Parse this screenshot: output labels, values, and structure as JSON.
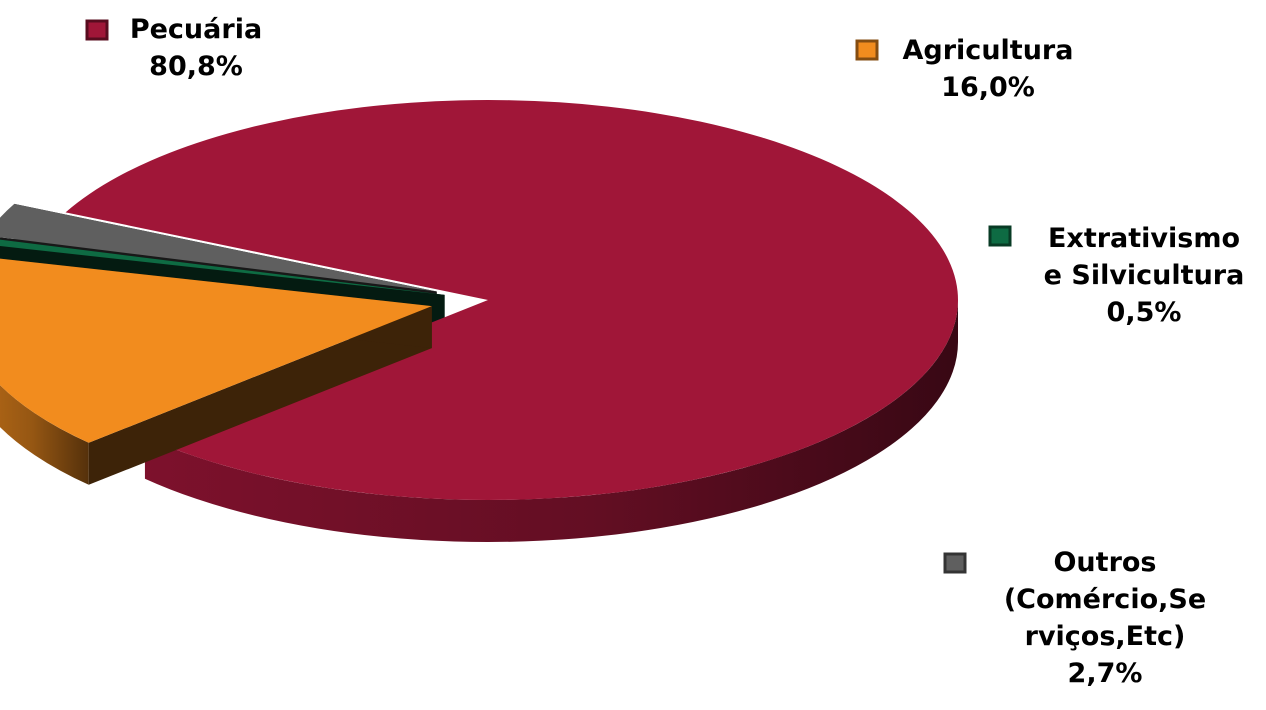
{
  "chart_data": {
    "type": "pie",
    "style": "3d-exploded",
    "title": "",
    "slices": [
      {
        "name": "Pecuária",
        "name_lines": [
          "Pecuária"
        ],
        "value": 80.8,
        "value_label": "80,8%",
        "color": "#A01638",
        "legend_marker": "dark-red-square"
      },
      {
        "name": "Agricultura",
        "name_lines": [
          "Agricultura"
        ],
        "value": 16.0,
        "value_label": "16,0%",
        "color": "#F28C1E",
        "legend_marker": "orange-square"
      },
      {
        "name": "Extrativismo e Silvicultura",
        "name_lines": [
          "Extrativismo",
          "e Silvicultura"
        ],
        "value": 0.5,
        "value_label": "0,5%",
        "color": "#0E6B43",
        "legend_marker": "green-square"
      },
      {
        "name": "Outros (Comércio,Serviços,Etc)",
        "name_lines": [
          "Outros",
          "(Comércio,Se",
          "rviços,Etc)"
        ],
        "value": 2.7,
        "value_label": "2,7%",
        "color": "#5F5F5F",
        "legend_marker": "gray-square"
      }
    ]
  }
}
